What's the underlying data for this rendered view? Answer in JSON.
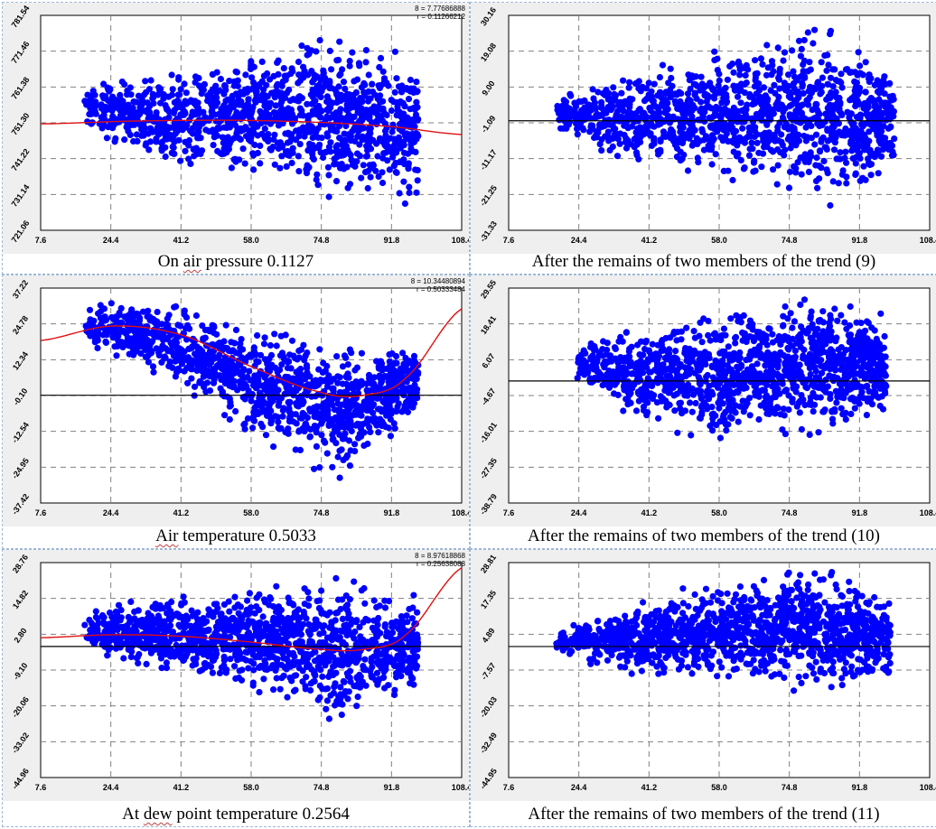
{
  "colors": {
    "points": "#0000ff",
    "trend": "#e01010",
    "zero_line": "#000000",
    "grid": "#808080",
    "panel_bg": "#efefef",
    "plot_bg": "#ffffff"
  },
  "chart_data": [
    {
      "type": "scatter",
      "caption": {
        "pre": "On ",
        "ul": "air",
        "post": " pressure 0.1127"
      },
      "stats": [
        "8 = 7.77686888",
        "r = 0.11266212"
      ],
      "xlim": [
        7.6,
        108.4
      ],
      "x_ticks": [
        "7.6",
        "24.4",
        "41.2",
        "58.0",
        "74.8",
        "91.8",
        "108.4"
      ],
      "ylim": [
        721.06,
        781.54
      ],
      "y_ticks": [
        "721.06",
        "731.14",
        "741.22",
        "751.30",
        "761.38",
        "771.46",
        "781.54"
      ],
      "zero_line": null,
      "trend": {
        "x": [
          7.6,
          30,
          55,
          75,
          91.8,
          108.4
        ],
        "y": [
          751.0,
          751.8,
          752.0,
          751.4,
          750.2,
          748.0
        ]
      },
      "cloud": {
        "x_start": 18,
        "x_end": 98,
        "center": [
          [
            18,
            756
          ],
          [
            40,
            752
          ],
          [
            60,
            754
          ],
          [
            80,
            752
          ],
          [
            98,
            750
          ]
        ],
        "half_width": [
          [
            18,
            6
          ],
          [
            40,
            12
          ],
          [
            60,
            16
          ],
          [
            80,
            20
          ],
          [
            98,
            18
          ]
        ]
      }
    },
    {
      "type": "scatter",
      "caption": {
        "pre": "After the remains of two members of the trend (9)",
        "ul": "",
        "post": ""
      },
      "stats": [],
      "xlim": [
        7.6,
        108.4
      ],
      "x_ticks": [
        "7.6",
        "24.4",
        "41.2",
        "58.0",
        "74.8",
        "91.8",
        "108.4"
      ],
      "ylim": [
        -31.33,
        30.16
      ],
      "y_ticks": [
        "-31.33",
        "-21.25",
        "-11.17",
        "-1.09",
        "9.00",
        "19.08",
        "30.16"
      ],
      "zero_line": 0,
      "trend": null,
      "cloud": {
        "x_start": 19,
        "x_end": 100,
        "center": [
          [
            19,
            2
          ],
          [
            40,
            0
          ],
          [
            60,
            2
          ],
          [
            80,
            2
          ],
          [
            100,
            0
          ]
        ],
        "half_width": [
          [
            19,
            5
          ],
          [
            40,
            12
          ],
          [
            60,
            16
          ],
          [
            80,
            21
          ],
          [
            100,
            17
          ]
        ]
      }
    },
    {
      "type": "scatter",
      "caption": {
        "pre": "",
        "ul": "Air",
        "post": " temperature 0.5033"
      },
      "stats": [
        "8 = 10.34480894",
        "r = 0.50333484"
      ],
      "xlim": [
        7.6,
        108.4
      ],
      "x_ticks": [
        "7.6",
        "24.4",
        "41.2",
        "58.0",
        "74.8",
        "91.8",
        "108.4"
      ],
      "ylim": [
        -37.42,
        37.22
      ],
      "y_ticks": [
        "-37.42",
        "-24.95",
        "-12.54",
        "-0.10",
        "12.34",
        "24.78",
        "37.22"
      ],
      "zero_line": 0,
      "trend": {
        "x": [
          7.6,
          24.4,
          41.2,
          58,
          74.8,
          85,
          95,
          108.4
        ],
        "y": [
          19,
          24,
          21,
          10,
          1,
          0,
          6,
          30
        ]
      },
      "cloud": {
        "x_start": 18,
        "x_end": 98,
        "center": [
          [
            18,
            25
          ],
          [
            40,
            18
          ],
          [
            60,
            4
          ],
          [
            80,
            -6
          ],
          [
            98,
            6
          ]
        ],
        "half_width": [
          [
            18,
            6
          ],
          [
            40,
            12
          ],
          [
            60,
            17
          ],
          [
            80,
            20
          ],
          [
            98,
            10
          ]
        ]
      }
    },
    {
      "type": "scatter",
      "caption": {
        "pre": "After the remains of two members of the trend (10)",
        "ul": "",
        "post": ""
      },
      "stats": [],
      "xlim": [
        7.6,
        108.4
      ],
      "x_ticks": [
        "7.6",
        "24.4",
        "41.2",
        "58.0",
        "74.8",
        "91.8",
        "108.4"
      ],
      "ylim": [
        -38.79,
        29.55
      ],
      "y_ticks": [
        "-38.79",
        "-27.35",
        "-16.01",
        "-4.67",
        "6.07",
        "18.41",
        "29.55"
      ],
      "zero_line": 0,
      "trend": null,
      "cloud": {
        "x_start": 24,
        "x_end": 98,
        "center": [
          [
            24,
            6
          ],
          [
            40,
            2
          ],
          [
            60,
            2
          ],
          [
            80,
            6
          ],
          [
            98,
            4
          ]
        ],
        "half_width": [
          [
            24,
            6
          ],
          [
            40,
            14
          ],
          [
            60,
            18
          ],
          [
            80,
            20
          ],
          [
            98,
            14
          ]
        ]
      }
    },
    {
      "type": "scatter",
      "caption": {
        "pre": "At ",
        "ul": "dew",
        "post": " point temperature 0.2564"
      },
      "stats": [
        "8 = 8.97618868",
        "r = 0.25638088"
      ],
      "xlim": [
        7.6,
        108.4
      ],
      "x_ticks": [
        "7.6",
        "24.4",
        "41.2",
        "58.0",
        "74.8",
        "91.8",
        "108.4"
      ],
      "ylim": [
        -44.96,
        28.76
      ],
      "y_ticks": [
        "-44.96",
        "-33.02",
        "-20.06",
        "-9.10",
        "2.80",
        "14.82",
        "28.76"
      ],
      "zero_line": 0,
      "trend": {
        "x": [
          7.6,
          24.4,
          41.2,
          58,
          74.8,
          85,
          95,
          108.4
        ],
        "y": [
          3,
          4,
          3.5,
          1.5,
          -1,
          -1,
          4,
          27
        ]
      },
      "cloud": {
        "x_start": 18,
        "x_end": 98,
        "center": [
          [
            18,
            5
          ],
          [
            40,
            4
          ],
          [
            60,
            2
          ],
          [
            80,
            -2
          ],
          [
            98,
            2
          ]
        ],
        "half_width": [
          [
            18,
            6
          ],
          [
            40,
            12
          ],
          [
            60,
            16
          ],
          [
            80,
            22
          ],
          [
            98,
            14
          ]
        ]
      }
    },
    {
      "type": "scatter",
      "caption": {
        "pre": "After the remains of two members of the trend (11)",
        "ul": "",
        "post": ""
      },
      "stats": [],
      "xlim": [
        7.6,
        108.4
      ],
      "x_ticks": [
        "7.6",
        "24.4",
        "41.2",
        "58.0",
        "74.8",
        "91.8",
        "108.4"
      ],
      "ylim": [
        -44.95,
        28.81
      ],
      "y_ticks": [
        "-44.95",
        "-32.49",
        "-20.03",
        "-7.57",
        "4.89",
        "17.35",
        "28.81"
      ],
      "zero_line": 0,
      "trend": null,
      "cloud": {
        "x_start": 19,
        "x_end": 99,
        "center": [
          [
            19,
            2
          ],
          [
            40,
            2
          ],
          [
            60,
            6
          ],
          [
            80,
            6
          ],
          [
            99,
            2
          ]
        ],
        "half_width": [
          [
            19,
            4
          ],
          [
            40,
            12
          ],
          [
            60,
            16
          ],
          [
            80,
            20
          ],
          [
            99,
            12
          ]
        ]
      }
    }
  ]
}
